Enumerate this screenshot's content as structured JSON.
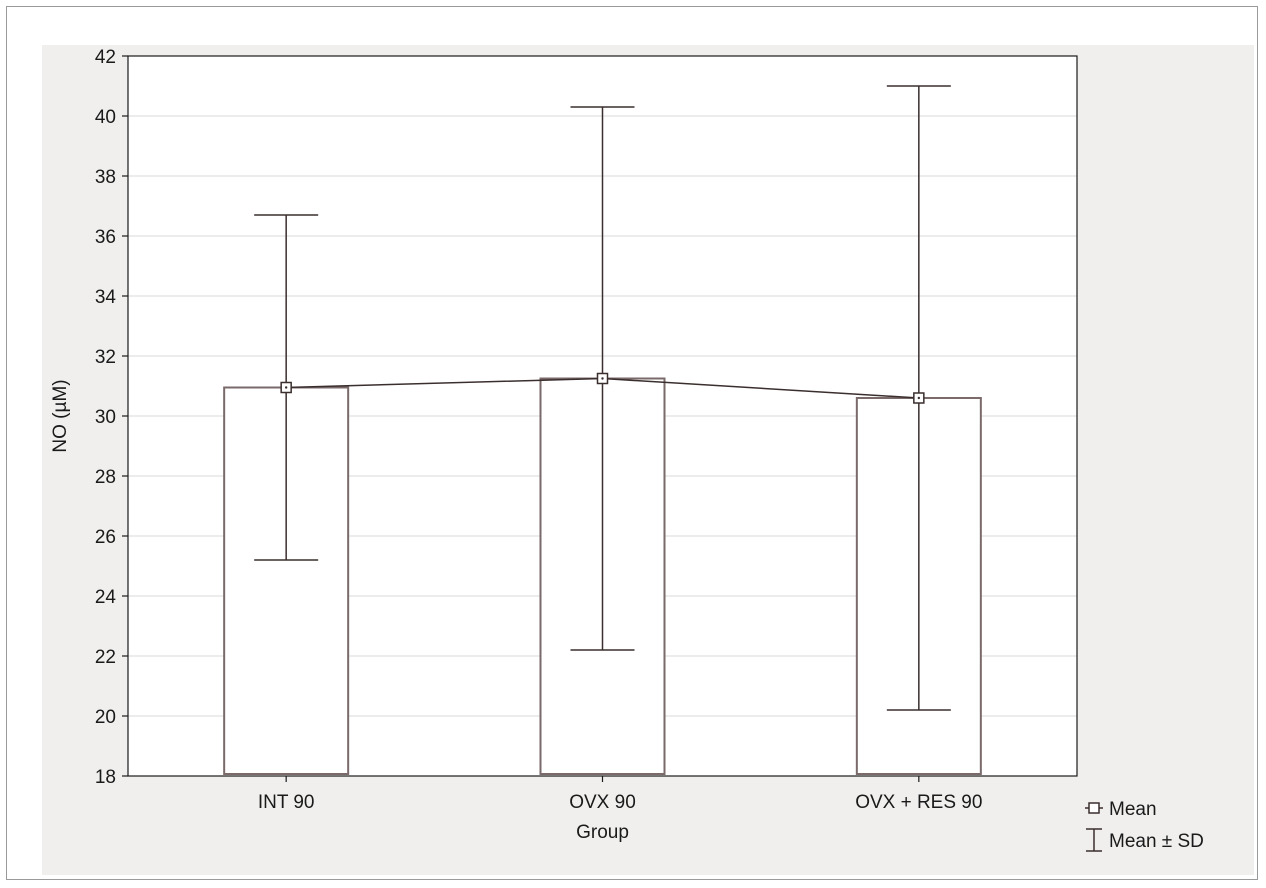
{
  "chart_data": {
    "type": "bar",
    "categories": [
      "INT 90",
      "OVX 90",
      "OVX + RES 90"
    ],
    "values": [
      30.95,
      31.25,
      30.6
    ],
    "error_low": [
      25.2,
      22.2,
      20.2
    ],
    "error_high": [
      36.7,
      40.3,
      41.0
    ],
    "xlabel": "Group",
    "ylabel": "NO (µM)",
    "ylim": [
      18,
      42
    ],
    "yticks": [
      18,
      20,
      22,
      24,
      26,
      28,
      30,
      32,
      34,
      36,
      38,
      40,
      42
    ],
    "grid": true,
    "mean_line": true,
    "legend": {
      "position": "bottom-right",
      "items": [
        {
          "label": "Mean",
          "marker": "square-dot"
        },
        {
          "label": "Mean ± SD",
          "marker": "whisker"
        }
      ]
    }
  },
  "colors": {
    "panel": "#f0efee",
    "plot": "#ffffff",
    "bar_fill": "#ffffff",
    "bar_stroke": "#7a6a6a",
    "line": "#3a2e2e",
    "grid": "#d9d9d9",
    "axis": "#1a1a1a"
  }
}
